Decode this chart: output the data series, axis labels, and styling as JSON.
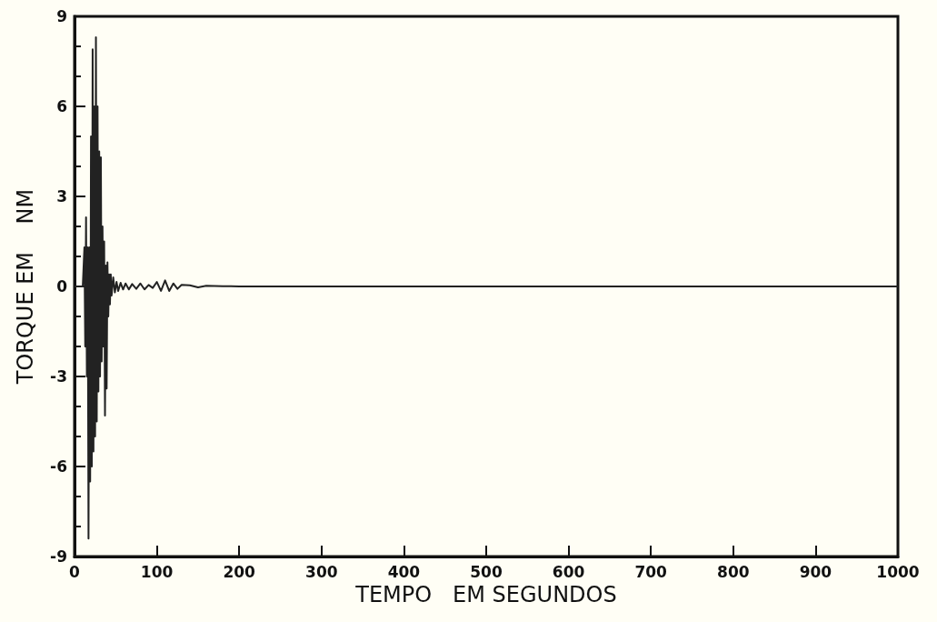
{
  "chart_data": {
    "type": "line",
    "xlabel": "TEMPO   EM SEGUNDOS",
    "ylabel": "TORQUE EM    NM",
    "series": [
      {
        "color": "#222222",
        "x": [
          0,
          10,
          12,
          13,
          14,
          15,
          16,
          17,
          18,
          19,
          20,
          21,
          22,
          23,
          24,
          25,
          26,
          27,
          28,
          29,
          30,
          31,
          32,
          33,
          34,
          35,
          36,
          37,
          38,
          39,
          40,
          41,
          42,
          43,
          44,
          45,
          47,
          49,
          51,
          53,
          56,
          59,
          62,
          66,
          70,
          75,
          80,
          85,
          90,
          95,
          100,
          105,
          110,
          115,
          120,
          125,
          130,
          140,
          150,
          160,
          180,
          200,
          300,
          500,
          1000
        ],
        "values": [
          0,
          0,
          1.3,
          -2,
          2.3,
          -3,
          1.3,
          -8.4,
          1.3,
          -6.5,
          5,
          -6,
          7.9,
          -5.5,
          6,
          -5,
          8.3,
          -4.5,
          6,
          -3.5,
          4.5,
          -3,
          4.3,
          -2.5,
          2,
          -2,
          1.5,
          -4.3,
          0.7,
          -3.4,
          0.8,
          -1,
          0.4,
          -0.6,
          0.4,
          -0.3,
          0.3,
          -0.2,
          0.15,
          -0.15,
          0.12,
          -0.1,
          0.1,
          -0.1,
          0.08,
          -0.08,
          0.1,
          -0.1,
          0.05,
          -0.05,
          0.15,
          -0.15,
          0.2,
          -0.15,
          0.1,
          -0.08,
          0.05,
          0.04,
          -0.03,
          0.02,
          0.01,
          0,
          0,
          0,
          0
        ]
      }
    ],
    "xlim": [
      0,
      1000
    ],
    "xticks": [
      0,
      100,
      200,
      300,
      400,
      500,
      600,
      700,
      800,
      900,
      1000
    ],
    "ylim": [
      -9,
      9
    ],
    "yticks": [
      -9,
      -6,
      -3,
      0,
      3,
      6,
      9
    ],
    "grid": false,
    "marker": "none",
    "line_style": "solid"
  }
}
